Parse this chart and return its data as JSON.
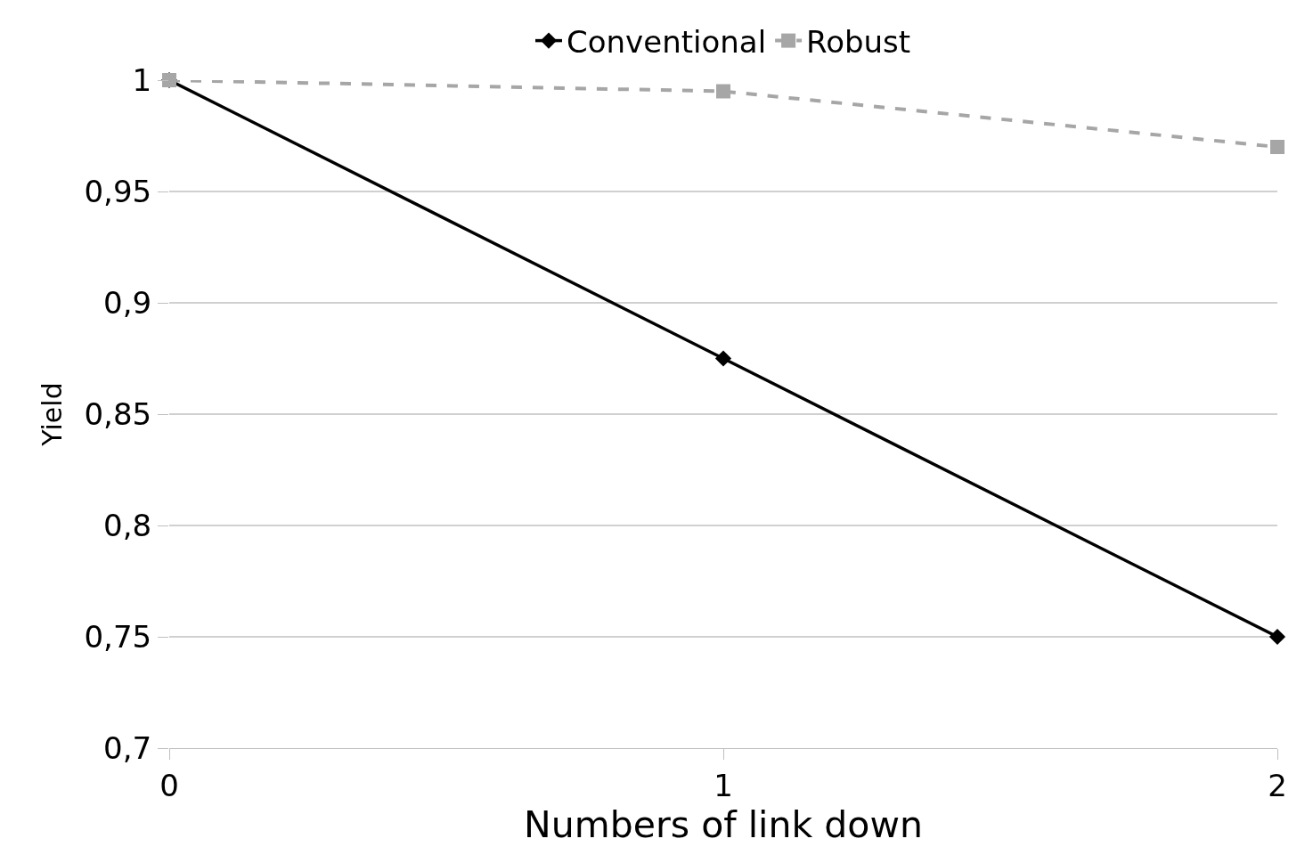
{
  "chart_data": {
    "type": "line",
    "xlabel": "Numbers of link down",
    "ylabel": "Yield",
    "categories": [
      "0",
      "1",
      "2"
    ],
    "series": [
      {
        "name": "Conventional",
        "color": "#000000",
        "values": [
          1,
          0.875,
          0.75
        ],
        "marker": "diamond",
        "line_style": "solid"
      },
      {
        "name": "Robust",
        "color": "#a6a6a6",
        "values": [
          1,
          0.995,
          0.97
        ],
        "marker": "square",
        "line_style": "dashed"
      }
    ],
    "ylim": [
      0.7,
      1
    ],
    "yticks": [
      {
        "value": 0.7,
        "label": "0,7"
      },
      {
        "value": 0.75,
        "label": "0,75"
      },
      {
        "value": 0.8,
        "label": "0,8"
      },
      {
        "value": 0.85,
        "label": "0,85"
      },
      {
        "value": 0.9,
        "label": "0,9"
      },
      {
        "value": 0.95,
        "label": "0,95"
      },
      1
    ],
    "grid": "y",
    "legend": "top"
  }
}
